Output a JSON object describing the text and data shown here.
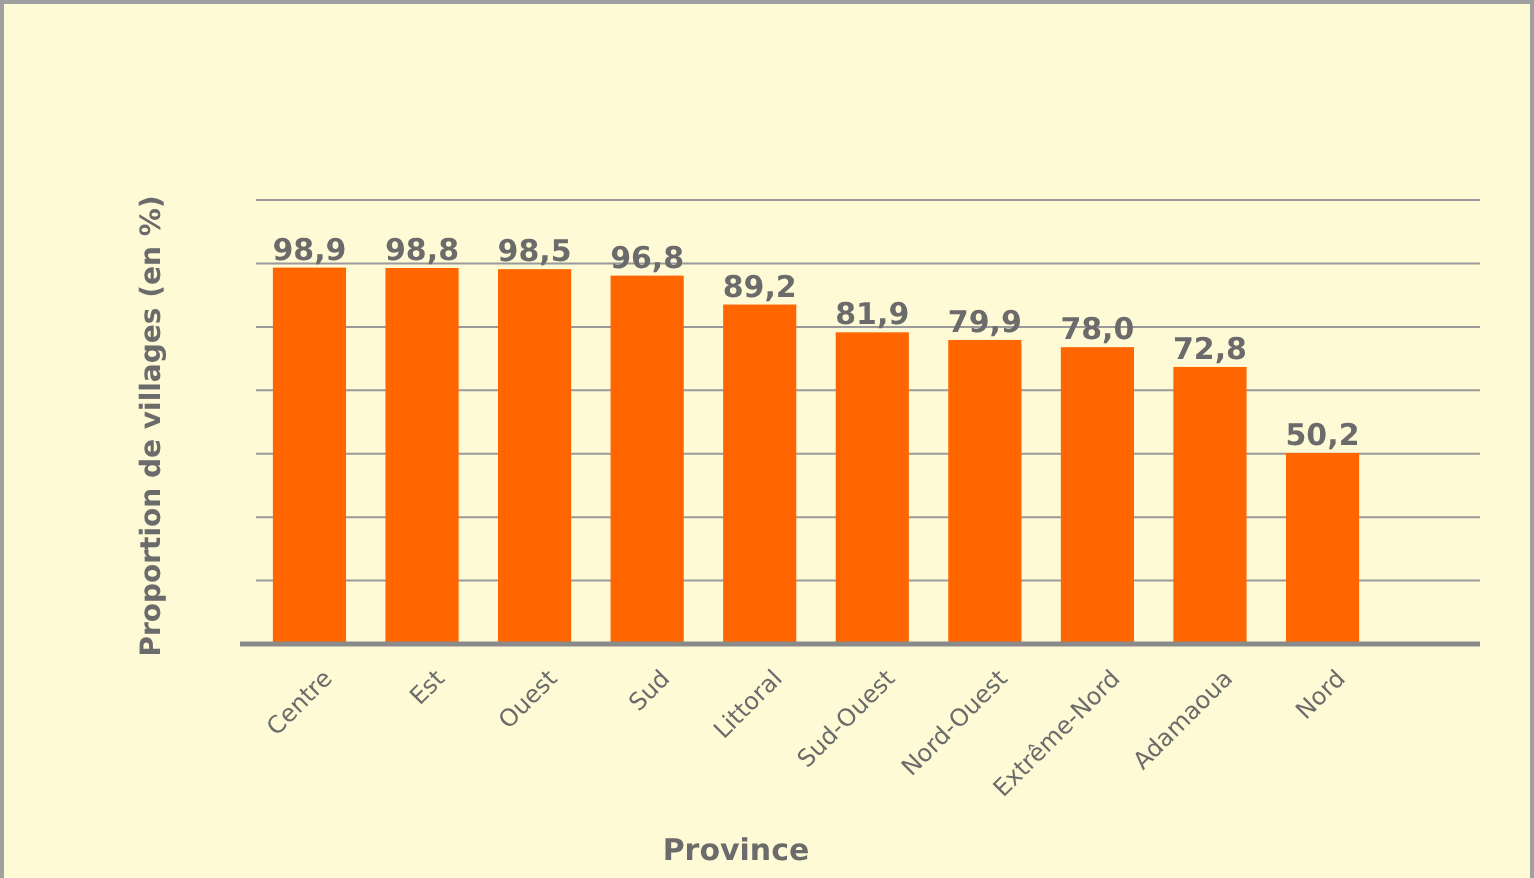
{
  "chart_data": {
    "type": "bar",
    "xlabel": "Province",
    "ylabel": "Proportion de villages (en %)",
    "categories": [
      "Centre",
      "Est",
      "Ouest",
      "Sud",
      "Littoral",
      "Sud-Ouest",
      "Nord-Ouest",
      "Extrême-Nord",
      "Adamaoua",
      "Nord"
    ],
    "values": [
      98.9,
      98.8,
      98.5,
      96.8,
      89.2,
      81.9,
      79.9,
      78.0,
      72.8,
      50.2
    ],
    "value_labels": [
      "98,9",
      "98,8",
      "98,5",
      "96,8",
      "89,2",
      "81,9",
      "79,9",
      "78,0",
      "72,8",
      "50,2"
    ],
    "color": "#ff6600",
    "ylim": [
      0,
      116.67
    ],
    "yticks": [
      {
        "value": 16.67,
        "label": null
      },
      {
        "value": 33.33,
        "label": null
      },
      {
        "value": 50,
        "label": null
      },
      {
        "value": 66.67,
        "label": null
      },
      {
        "value": 83.33,
        "label": null
      },
      {
        "value": 100,
        "label": null
      },
      {
        "value": 116.67,
        "label": null
      }
    ],
    "grid": "y",
    "tick_labels": "x"
  }
}
